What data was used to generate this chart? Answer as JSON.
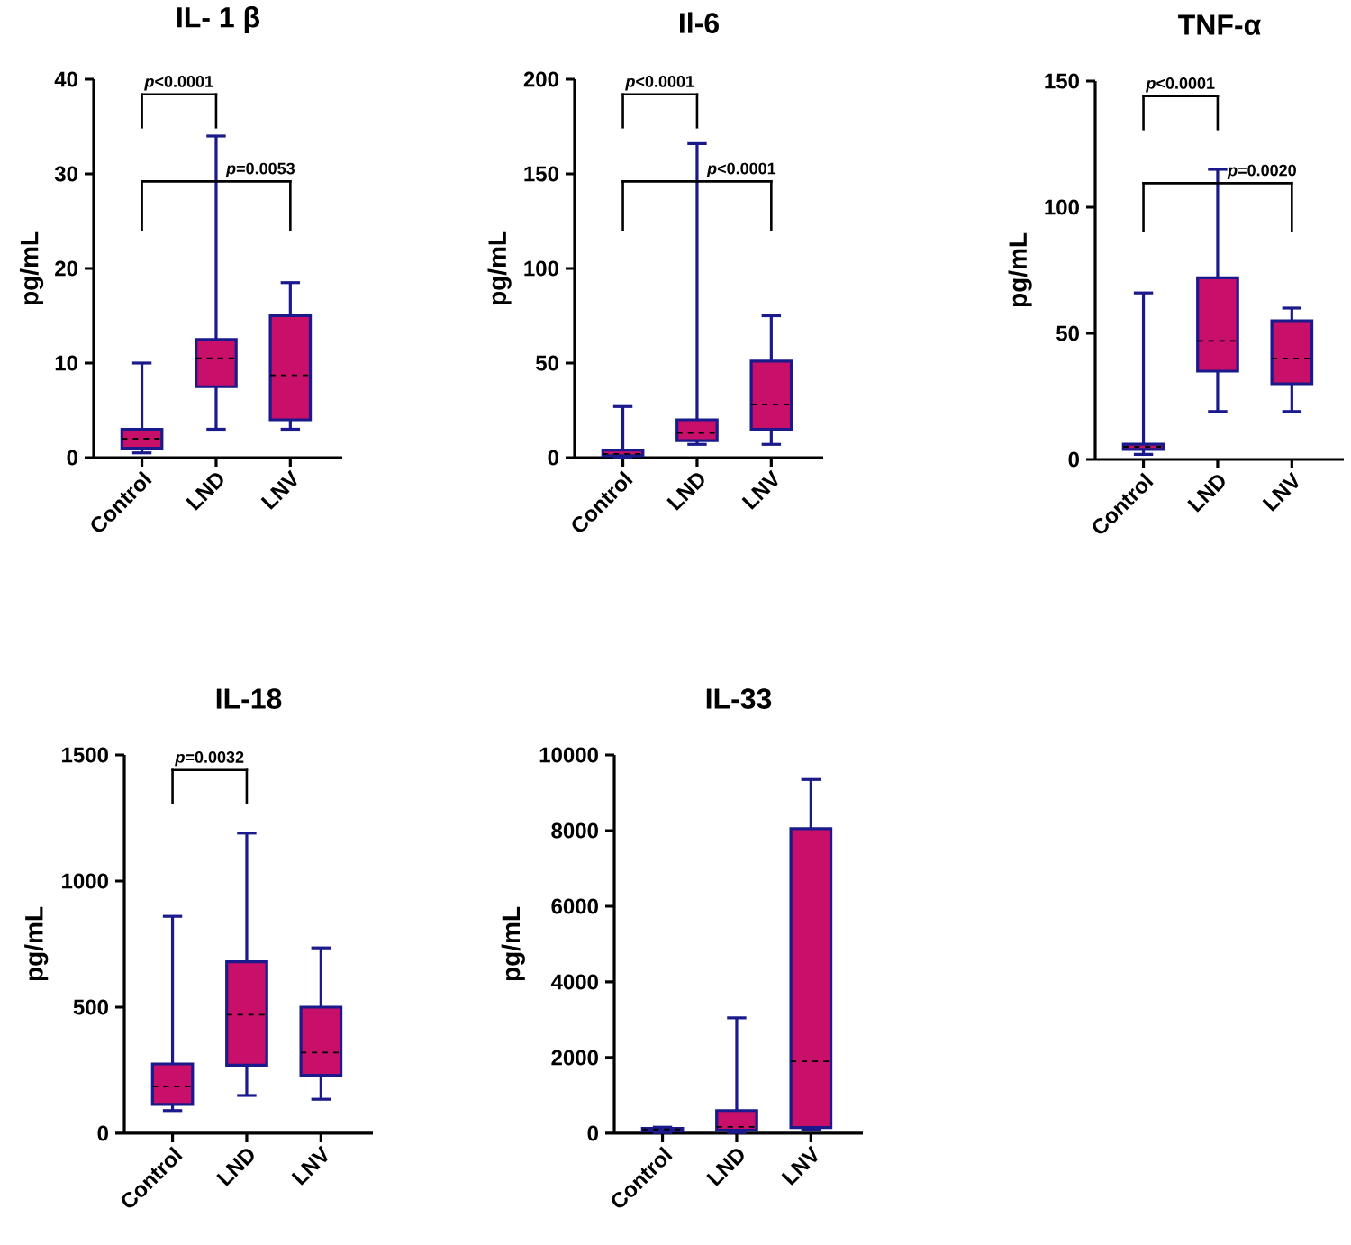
{
  "chart_data": [
    {
      "type": "box",
      "title": "IL- 1 β",
      "ylabel": "pg/mL",
      "categories": [
        "Control",
        "LND",
        "LNV"
      ],
      "ylim": [
        0,
        40
      ],
      "yticks": [
        0,
        10,
        20,
        30,
        40
      ],
      "color": "#c8106a",
      "boxes": [
        {
          "low": 0.5,
          "q1": 1,
          "median": 2,
          "q3": 3,
          "high": 10
        },
        {
          "low": 3,
          "q1": 7.5,
          "median": 10.5,
          "q3": 12.5,
          "high": 34
        },
        {
          "low": 3,
          "q1": 4,
          "median": 8.7,
          "q3": 15,
          "high": 18.5
        }
      ],
      "annotations": [
        "*p*<0.0001",
        "*p*=0.0053"
      ]
    },
    {
      "type": "box",
      "title": "Il-6",
      "ylabel": "pg/mL",
      "categories": [
        "Control",
        "LND",
        "LNV"
      ],
      "ylim": [
        0,
        200
      ],
      "yticks": [
        0,
        50,
        100,
        150,
        200
      ],
      "color": "#c8106a",
      "boxes": [
        {
          "low": 0,
          "q1": 1,
          "median": 2,
          "q3": 4,
          "high": 27
        },
        {
          "low": 7,
          "q1": 9,
          "median": 13,
          "q3": 20,
          "high": 166
        },
        {
          "low": 7,
          "q1": 15,
          "median": 28,
          "q3": 51,
          "high": 75
        }
      ],
      "annotations": [
        "*p*<0.0001",
        "*p*<0.0001"
      ]
    },
    {
      "type": "box",
      "title": "TNF-α",
      "ylabel": "pg/mL",
      "categories": [
        "Control",
        "LND",
        "LNV"
      ],
      "ylim": [
        0,
        150
      ],
      "yticks": [
        0,
        50,
        100,
        150
      ],
      "color": "#c8106a",
      "boxes": [
        {
          "low": 2,
          "q1": 4,
          "median": 5,
          "q3": 6,
          "high": 66
        },
        {
          "low": 19,
          "q1": 35,
          "median": 47,
          "q3": 72,
          "high": 115
        },
        {
          "low": 19,
          "q1": 30,
          "median": 40,
          "q3": 55,
          "high": 60
        }
      ],
      "annotations": [
        "*p*<0.0001",
        "*p*=0.0020"
      ]
    },
    {
      "type": "box",
      "title": "IL-18",
      "ylabel": "pg/mL",
      "categories": [
        "Control",
        "LND",
        "LNV"
      ],
      "ylim": [
        0,
        1500
      ],
      "yticks": [
        0,
        500,
        1000,
        1500
      ],
      "color": "#c8106a",
      "boxes": [
        {
          "low": 90,
          "q1": 115,
          "median": 185,
          "q3": 275,
          "high": 860
        },
        {
          "low": 150,
          "q1": 270,
          "median": 470,
          "q3": 680,
          "high": 1190
        },
        {
          "low": 135,
          "q1": 230,
          "median": 320,
          "q3": 500,
          "high": 735
        }
      ],
      "annotations": [
        "*p*=0.0032"
      ]
    },
    {
      "type": "box",
      "title": "IL-33",
      "ylabel": "pg/mL",
      "categories": [
        "Control",
        "LND",
        "LNV"
      ],
      "ylim": [
        0,
        10000
      ],
      "yticks": [
        0,
        2000,
        4000,
        6000,
        8000,
        10000
      ],
      "color": "#c8106a",
      "boxes": [
        {
          "low": 20,
          "q1": 60,
          "median": 100,
          "q3": 130,
          "high": 160
        },
        {
          "low": 20,
          "q1": 80,
          "median": 170,
          "q3": 600,
          "high": 3050
        },
        {
          "low": 100,
          "q1": 150,
          "median": 1900,
          "q3": 8050,
          "high": 9350
        }
      ]
    }
  ]
}
